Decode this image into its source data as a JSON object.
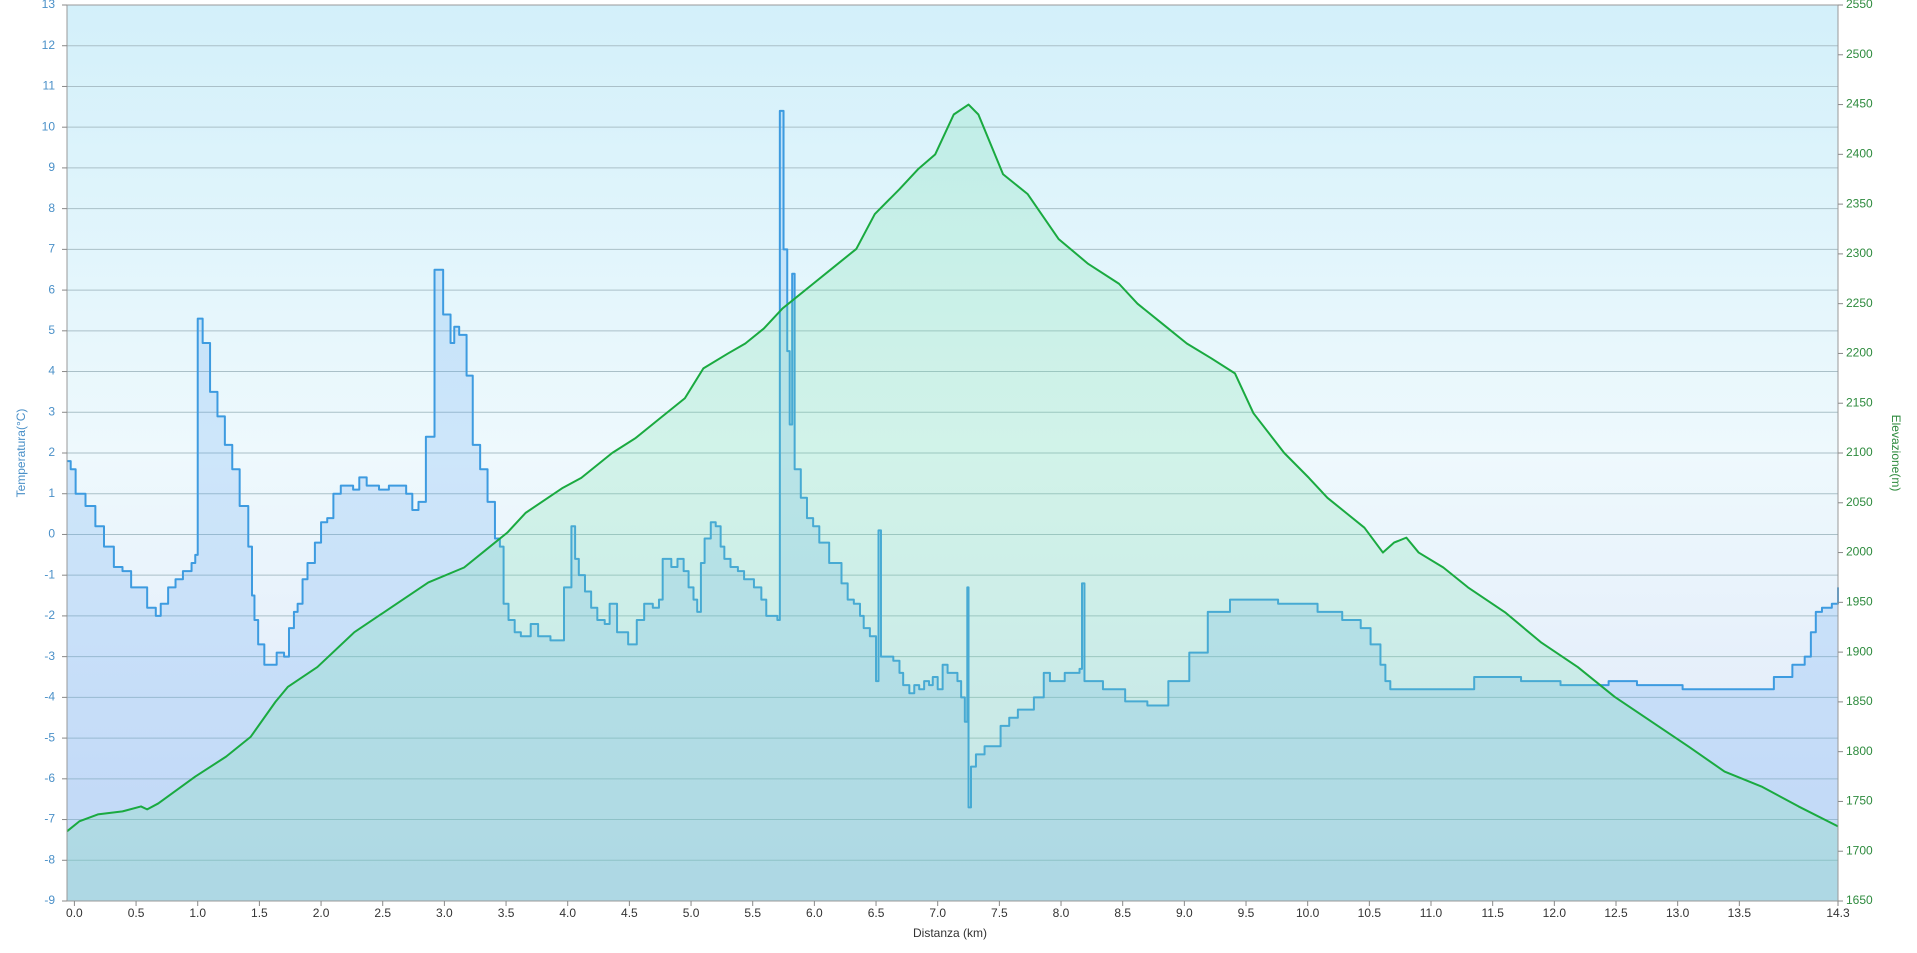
{
  "chart_data": {
    "type": "line",
    "xlabel": "Distanza  (km)",
    "ylabel": "Temperatura(°C)",
    "y2label": "Elevazione(m)",
    "xlim": [
      -0.06,
      14.3
    ],
    "ylim": [
      -9,
      13
    ],
    "y2lim": [
      1650,
      2550
    ],
    "grid": true,
    "xticks": [
      {
        "value": 0,
        "label": "0.0"
      },
      0.5,
      {
        "value": 1,
        "label": "1.0"
      },
      1.5,
      {
        "value": 2,
        "label": "2.0"
      },
      2.5,
      {
        "value": 3,
        "label": "3.0"
      },
      3.5,
      {
        "value": 4,
        "label": "4.0"
      },
      4.5,
      {
        "value": 5,
        "label": "5.0"
      },
      5.5,
      {
        "value": 6,
        "label": "6.0"
      },
      6.5,
      {
        "value": 7,
        "label": "7.0"
      },
      7.5,
      {
        "value": 8,
        "label": "8.0"
      },
      8.5,
      {
        "value": 9,
        "label": "9.0"
      },
      9.5,
      {
        "value": 10,
        "label": "10.0"
      },
      10.5,
      {
        "value": 11,
        "label": "11.0"
      },
      11.5,
      {
        "value": 12,
        "label": "12.0"
      },
      12.5,
      {
        "value": 13,
        "label": "13.0"
      },
      13.5,
      14.3
    ],
    "yticks": [
      -9,
      -8,
      -7,
      -6,
      -5,
      -4,
      -3,
      -2,
      -1,
      0,
      1,
      2,
      3,
      4,
      5,
      6,
      7,
      8,
      9,
      10,
      11,
      12,
      13
    ],
    "y2ticks": [
      1650,
      1700,
      1750,
      1800,
      1850,
      1900,
      1950,
      2000,
      2050,
      2100,
      2150,
      2200,
      2250,
      2300,
      2350,
      2400,
      2450,
      2500,
      2550
    ],
    "series": [
      {
        "color": "#3d9be0",
        "step": "after",
        "axis": "y",
        "x": [
          -0.06,
          -0.03,
          0.01,
          0.09,
          0.17,
          0.24,
          0.32,
          0.39,
          0.46,
          0.59,
          0.66,
          0.7,
          0.76,
          0.82,
          0.88,
          0.95,
          0.98,
          1.0,
          1.04,
          1.1,
          1.16,
          1.22,
          1.28,
          1.34,
          1.41,
          1.44,
          1.46,
          1.49,
          1.54,
          1.64,
          1.7,
          1.74,
          1.78,
          1.81,
          1.85,
          1.89,
          1.95,
          2.0,
          2.05,
          2.1,
          2.16,
          2.26,
          2.31,
          2.37,
          2.47,
          2.55,
          2.69,
          2.74,
          2.79,
          2.85,
          2.92,
          2.99,
          3.05,
          3.08,
          3.12,
          3.18,
          3.23,
          3.29,
          3.35,
          3.41,
          3.45,
          3.48,
          3.52,
          3.57,
          3.62,
          3.7,
          3.76,
          3.86,
          3.97,
          4.03,
          4.06,
          4.09,
          4.14,
          4.19,
          4.24,
          4.3,
          4.34,
          4.4,
          4.49,
          4.56,
          4.62,
          4.69,
          4.74,
          4.77,
          4.84,
          4.89,
          4.94,
          4.98,
          5.02,
          5.05,
          5.08,
          5.11,
          5.16,
          5.2,
          5.24,
          5.27,
          5.32,
          5.38,
          5.43,
          5.51,
          5.57,
          5.61,
          5.65,
          5.7,
          5.72,
          5.75,
          5.78,
          5.8,
          5.82,
          5.84,
          5.89,
          5.94,
          5.99,
          6.04,
          6.12,
          6.22,
          6.27,
          6.32,
          6.37,
          6.4,
          6.45,
          6.5,
          6.52,
          6.54,
          6.64,
          6.69,
          6.72,
          6.77,
          6.81,
          6.85,
          6.89,
          6.93,
          6.96,
          7.0,
          7.04,
          7.08,
          7.12,
          7.16,
          7.19,
          7.22,
          7.24,
          7.25,
          7.27,
          7.31,
          7.38,
          7.51,
          7.58,
          7.65,
          7.78,
          7.86,
          7.91,
          8.03,
          8.15,
          8.17,
          8.19,
          8.34,
          8.52,
          8.7,
          8.87,
          9.04,
          9.19,
          9.37,
          9.76,
          10.08,
          10.28,
          10.43,
          10.51,
          10.59,
          10.63,
          10.67,
          11.35,
          11.73,
          12.05,
          12.44,
          12.67,
          13.04,
          13.78,
          13.93,
          14.03,
          14.08,
          14.12,
          14.17,
          14.25,
          14.3
        ],
        "values": [
          1.8,
          1.6,
          1.0,
          0.7,
          0.2,
          -0.3,
          -0.8,
          -0.9,
          -1.3,
          -1.8,
          -2.0,
          -1.7,
          -1.3,
          -1.1,
          -0.9,
          -0.7,
          -0.5,
          5.3,
          4.7,
          3.5,
          2.9,
          2.2,
          1.6,
          0.7,
          -0.3,
          -1.5,
          -2.1,
          -2.7,
          -3.2,
          -2.9,
          -3.0,
          -2.3,
          -1.9,
          -1.7,
          -1.1,
          -0.7,
          -0.2,
          0.3,
          0.4,
          1.0,
          1.2,
          1.1,
          1.4,
          1.2,
          1.1,
          1.2,
          1.0,
          0.6,
          0.8,
          2.4,
          6.5,
          5.4,
          4.7,
          5.1,
          4.9,
          3.9,
          2.2,
          1.6,
          0.8,
          -0.1,
          -0.3,
          -1.7,
          -2.1,
          -2.4,
          -2.5,
          -2.2,
          -2.5,
          -2.6,
          -1.3,
          0.2,
          -0.6,
          -1.0,
          -1.4,
          -1.8,
          -2.1,
          -2.2,
          -1.7,
          -2.4,
          -2.7,
          -2.1,
          -1.7,
          -1.8,
          -1.6,
          -0.6,
          -0.8,
          -0.6,
          -0.9,
          -1.3,
          -1.6,
          -1.9,
          -0.7,
          -0.1,
          0.3,
          0.2,
          -0.3,
          -0.6,
          -0.8,
          -0.9,
          -1.1,
          -1.3,
          -1.6,
          -2.0,
          -2.0,
          -2.1,
          10.4,
          7.0,
          4.5,
          2.7,
          6.4,
          1.6,
          0.9,
          0.4,
          0.2,
          -0.2,
          -0.7,
          -1.2,
          -1.6,
          -1.7,
          -2.0,
          -2.3,
          -2.5,
          -3.6,
          0.1,
          -3.0,
          -3.1,
          -3.4,
          -3.7,
          -3.9,
          -3.7,
          -3.8,
          -3.6,
          -3.7,
          -3.5,
          -3.8,
          -3.2,
          -3.4,
          -3.4,
          -3.6,
          -4.0,
          -4.6,
          -1.3,
          -6.7,
          -5.7,
          -5.4,
          -5.2,
          -4.7,
          -4.5,
          -4.3,
          -4.0,
          -3.4,
          -3.6,
          -3.4,
          -3.3,
          -1.2,
          -3.6,
          -3.8,
          -4.1,
          -4.2,
          -3.6,
          -2.9,
          -1.9,
          -1.6,
          -1.7,
          -1.9,
          -2.1,
          -2.3,
          -2.7,
          -3.2,
          -3.6,
          -3.8,
          -3.5,
          -3.6,
          -3.7,
          -3.6,
          -3.7,
          -3.8,
          -3.5,
          -3.2,
          -3.0,
          -2.4,
          -1.9,
          -1.8,
          -1.7,
          -1.3
        ]
      },
      {
        "color": "#1aaa40",
        "axis": "y2",
        "x": [
          -0.06,
          0.04,
          0.19,
          0.39,
          0.54,
          0.59,
          0.68,
          0.98,
          1.23,
          1.43,
          1.63,
          1.73,
          1.97,
          2.27,
          2.57,
          2.87,
          3.16,
          3.36,
          3.51,
          3.66,
          3.96,
          4.11,
          4.36,
          4.55,
          4.75,
          4.95,
          5.1,
          5.3,
          5.44,
          5.59,
          5.74,
          5.84,
          5.99,
          6.14,
          6.34,
          6.49,
          6.69,
          6.84,
          6.98,
          7.13,
          7.25,
          7.33,
          7.53,
          7.73,
          7.98,
          8.22,
          8.47,
          8.62,
          8.82,
          9.02,
          9.22,
          9.41,
          9.56,
          9.81,
          10.01,
          10.16,
          10.31,
          10.46,
          10.61,
          10.7,
          10.8,
          10.9,
          11.1,
          11.3,
          11.6,
          11.89,
          12.19,
          12.49,
          12.79,
          13.09,
          13.38,
          13.68,
          13.98,
          14.3
        ],
        "values": [
          1720,
          1730,
          1737,
          1740,
          1745,
          1742,
          1748,
          1775,
          1795,
          1815,
          1850,
          1865,
          1885,
          1920,
          1945,
          1970,
          1985,
          2005,
          2020,
          2040,
          2065,
          2075,
          2100,
          2115,
          2135,
          2155,
          2185,
          2200,
          2210,
          2225,
          2245,
          2255,
          2270,
          2285,
          2305,
          2340,
          2365,
          2385,
          2400,
          2440,
          2450,
          2440,
          2380,
          2360,
          2315,
          2290,
          2270,
          2250,
          2230,
          2210,
          2195,
          2180,
          2140,
          2100,
          2075,
          2055,
          2040,
          2025,
          2000,
          2010,
          2015,
          2000,
          1985,
          1965,
          1940,
          1910,
          1885,
          1855,
          1830,
          1805,
          1780,
          1765,
          1745,
          1725
        ]
      }
    ]
  }
}
